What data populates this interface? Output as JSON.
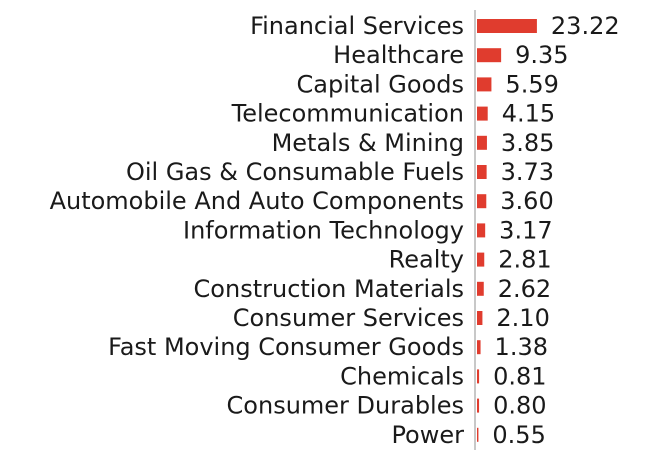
{
  "chart_data": {
    "type": "bar",
    "orientation": "horizontal",
    "title": "",
    "xlabel": "",
    "ylabel": "",
    "grid": false,
    "bar_color": "#e03c2e",
    "axis_color": "#c8c8c8",
    "categories": [
      "Financial Services",
      "Healthcare",
      "Capital Goods",
      "Telecommunication",
      "Metals & Mining",
      "Oil Gas & Consumable Fuels",
      "Automobile And Auto Components",
      "Information Technology",
      "Realty",
      "Construction Materials",
      "Consumer Services",
      "Fast Moving Consumer Goods",
      "Chemicals",
      "Consumer Durables",
      "Power"
    ],
    "values": [
      23.22,
      9.35,
      5.59,
      4.15,
      3.85,
      3.73,
      3.6,
      3.17,
      2.81,
      2.62,
      2.1,
      1.38,
      0.81,
      0.8,
      0.55
    ],
    "value_labels": [
      "23.22",
      "9.35",
      "5.59",
      "4.15",
      "3.85",
      "3.73",
      "3.60",
      "3.17",
      "2.81",
      "2.62",
      "2.10",
      "1.38",
      "0.81",
      "0.80",
      "0.55"
    ]
  }
}
